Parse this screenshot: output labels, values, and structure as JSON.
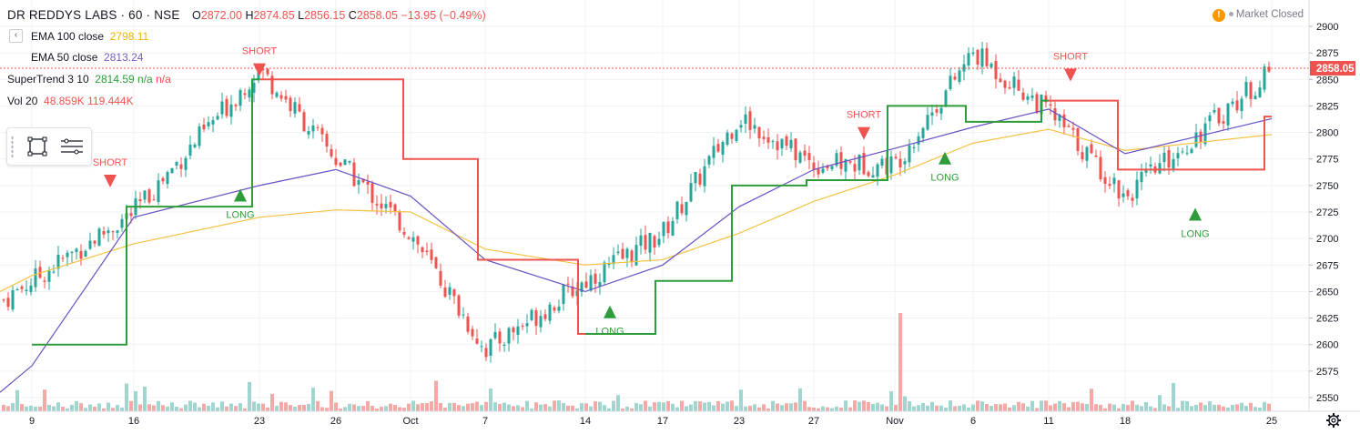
{
  "header": {
    "symbol": "DR REDDYS LABS · 60 · NSE",
    "open_label": "O",
    "open": "2872.00",
    "high_label": "H",
    "high": "2874.85",
    "low_label": "L",
    "low": "2856.15",
    "close_label": "C",
    "close": "2858.05",
    "change": "−13.95 (−0.49%)"
  },
  "indicators": [
    {
      "name": "EMA 100 close",
      "value": "2798.11",
      "color": "#f0b400"
    },
    {
      "name": "EMA 50 close",
      "value": "2813.24",
      "color": "#7a5dc7"
    },
    {
      "name": "SuperTrend 3 10",
      "value": "2814.59",
      "extra": "n/a",
      "extra2": "n/a",
      "color": "#2e9c3a"
    },
    {
      "name": "Vol 20",
      "value": "48.859K",
      "extra": "119.444K",
      "color": "#ef5350"
    }
  ],
  "market_status": "Market Closed",
  "colors": {
    "up": "#26a69a",
    "down": "#ef5350",
    "ema100": "#f5c242",
    "ema50": "#6a4fc3",
    "st_up": "#2e9c3a",
    "st_down": "#ef5350"
  },
  "icons": [
    "collapse-chevron-icon",
    "warning-icon",
    "rectangle-tool-icon",
    "format-lines-icon",
    "settings-gear-icon"
  ],
  "chart_data": {
    "type": "candlestick",
    "title": "DR REDDYS LABS · 60 · NSE",
    "ylim": [
      2540,
      2910
    ],
    "y_ticks": [
      2550,
      2575,
      2600,
      2625,
      2650,
      2675,
      2700,
      2725,
      2750,
      2775,
      2800,
      2825,
      2850,
      2875,
      2900
    ],
    "x_ticks": [
      "9",
      "16",
      "23",
      "26",
      "Oct",
      "7",
      "14",
      "17",
      "23",
      "27",
      "Nov",
      "6",
      "11",
      "18",
      "25"
    ],
    "last_price": "2858.05",
    "close_path": [
      {
        "date": "9",
        "close": 2660
      },
      {
        "date": "16",
        "close": 2725
      },
      {
        "date": "23",
        "close": 2860
      },
      {
        "date": "26",
        "close": 2775
      },
      {
        "date": "Oct",
        "close": 2705
      },
      {
        "date": "7",
        "close": 2595
      },
      {
        "date": "14",
        "close": 2660
      },
      {
        "date": "17",
        "close": 2705
      },
      {
        "date": "23",
        "close": 2815
      },
      {
        "date": "27",
        "close": 2770
      },
      {
        "date": "Nov",
        "close": 2770
      },
      {
        "date": "6",
        "close": 2875
      },
      {
        "date": "11",
        "close": 2820
      },
      {
        "date": "18",
        "close": 2740
      },
      {
        "date": "25",
        "close": 2858
      }
    ],
    "series": [
      {
        "name": "EMA 100 close",
        "last": 2798.11,
        "points": [
          [
            "9",
            2665
          ],
          [
            "16",
            2695
          ],
          [
            "23",
            2720
          ],
          [
            "26",
            2727
          ],
          [
            "Oct",
            2725
          ],
          [
            "7",
            2690
          ],
          [
            "14",
            2675
          ],
          [
            "17",
            2680
          ],
          [
            "23",
            2705
          ],
          [
            "27",
            2735
          ],
          [
            "Nov",
            2760
          ],
          [
            "6",
            2790
          ],
          [
            "11",
            2803
          ],
          [
            "18",
            2783
          ],
          [
            "25",
            2798
          ]
        ]
      },
      {
        "name": "EMA 50 close",
        "last": 2813.24,
        "points": [
          [
            "9",
            2580
          ],
          [
            "16",
            2720
          ],
          [
            "23",
            2750
          ],
          [
            "26",
            2765
          ],
          [
            "Oct",
            2740
          ],
          [
            "7",
            2680
          ],
          [
            "14",
            2650
          ],
          [
            "17",
            2675
          ],
          [
            "23",
            2730
          ],
          [
            "27",
            2765
          ],
          [
            "Nov",
            2785
          ],
          [
            "6",
            2805
          ],
          [
            "11",
            2822
          ],
          [
            "18",
            2780
          ],
          [
            "25",
            2813
          ]
        ]
      },
      {
        "name": "SuperTrend 3 10",
        "last": 2814.59,
        "points": [
          [
            "9",
            2600
          ],
          [
            "16",
            2730
          ],
          [
            "23",
            2850
          ],
          [
            "26",
            2850
          ],
          [
            "Oct",
            2775
          ],
          [
            "7",
            2680
          ],
          [
            "14",
            2610
          ],
          [
            "17",
            2660
          ],
          [
            "23",
            2750
          ],
          [
            "27",
            2755
          ],
          [
            "Nov",
            2825
          ],
          [
            "6",
            2810
          ],
          [
            "11",
            2830
          ],
          [
            "18",
            2765
          ],
          [
            "25",
            2815
          ]
        ]
      }
    ],
    "signals": [
      {
        "label": "SHORT",
        "date": "16"
      },
      {
        "label": "LONG",
        "date": "23"
      },
      {
        "label": "SHORT",
        "date": "23"
      },
      {
        "label": "LONG",
        "date": "14"
      },
      {
        "label": "SHORT",
        "date": "Nov"
      },
      {
        "label": "LONG",
        "date": "Nov"
      },
      {
        "label": "SHORT",
        "date": "11"
      },
      {
        "label": "LONG",
        "date": "25"
      }
    ],
    "volume_label": "Vol 20",
    "volume_spike_date": "Nov"
  }
}
